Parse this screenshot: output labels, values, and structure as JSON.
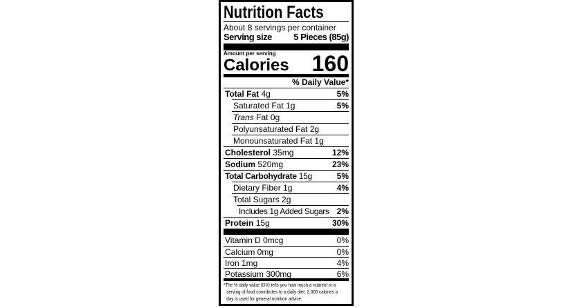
{
  "title": "Nutrition Facts",
  "servings_per_container": "About 8 servings per container",
  "serving_size_label": "Serving size",
  "serving_size_value": "5 Pieces (85g)",
  "amount_per_serving": "Amount per serving",
  "calories_label": "Calories",
  "calories_value": "160",
  "daily_value_header": "% Daily Value*",
  "nutrients": [
    {
      "name": "Total Fat",
      "amount": "4g",
      "dv": "5%"
    },
    {
      "name": "Saturated Fat",
      "amount": "1g",
      "dv": "5%"
    },
    {
      "name": "Trans",
      "amount": "Fat 0g",
      "dv": ""
    },
    {
      "name": "Polyunsaturated Fat",
      "amount": "2g",
      "dv": ""
    },
    {
      "name": "Monounsaturated Fat",
      "amount": "1g",
      "dv": ""
    },
    {
      "name": "Cholesterol",
      "amount": "35mg",
      "dv": "12%"
    },
    {
      "name": "Sodium",
      "amount": "520mg",
      "dv": "23%"
    },
    {
      "name": "Total Carbohydrate",
      "amount": "15g",
      "dv": "5%"
    },
    {
      "name": "Dietary Fiber",
      "amount": "1g",
      "dv": "4%"
    },
    {
      "name": "Total Sugars",
      "amount": "2g",
      "dv": ""
    },
    {
      "name": "Includes 1g Added Sugars",
      "amount": "",
      "dv": "2%"
    },
    {
      "name": "Protein",
      "amount": "15g",
      "dv": "30%"
    }
  ],
  "micronutrients": [
    {
      "name": "Vitamin D 0mcg",
      "dv": "0%"
    },
    {
      "name": "Calcium 0mg",
      "dv": "0%"
    },
    {
      "name": "Iron 1mg",
      "dv": "4%"
    },
    {
      "name": "Potassium 300mg",
      "dv": "6%"
    }
  ],
  "footnote": [
    "*The % daily value (DV) tells you how much a nutrient in a",
    "serving of food contributes to a daily diet. 2,000 calories a",
    "day is used for general nutrition advice."
  ]
}
